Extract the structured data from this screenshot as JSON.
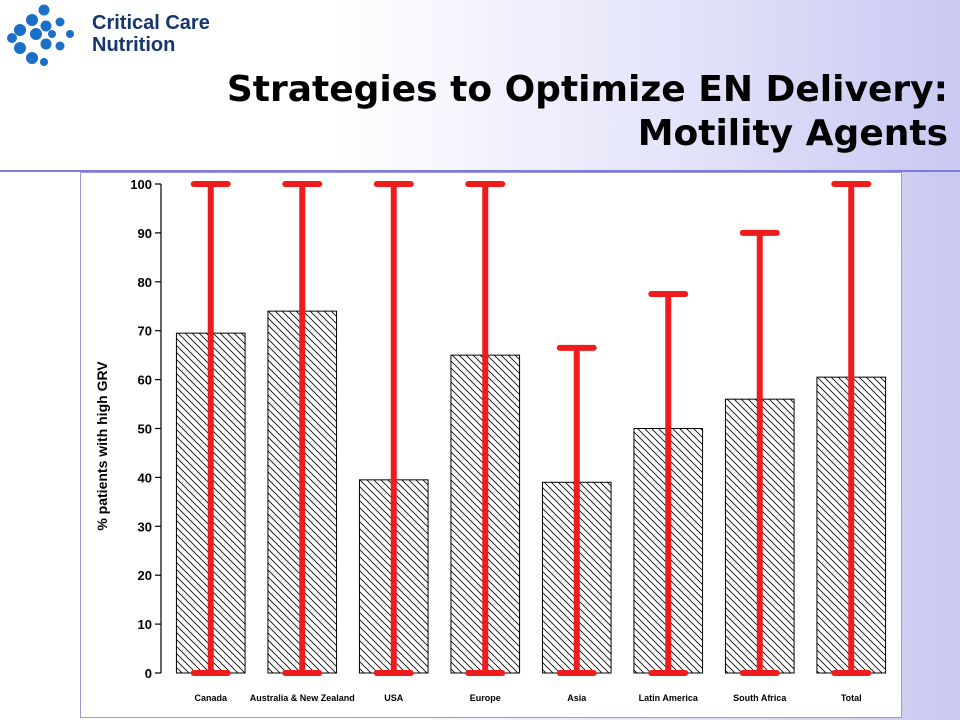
{
  "logo": {
    "line1": "Critical Care",
    "line2": "Nutrition",
    "icon": "ccn-dots-logo",
    "color": "#1b6fc8"
  },
  "slide": {
    "title_line1": "Strategies to Optimize EN Delivery:",
    "title_line2": "Motility Agents"
  },
  "colors": {
    "errorbar": "#ee1c1c",
    "rule": "#7b7be0"
  },
  "chart_data": {
    "type": "bar",
    "categories": [
      "Canada",
      "Australia & New Zealand",
      "USA",
      "Europe",
      "Asia",
      "Latin America",
      "South Africa",
      "Total"
    ],
    "values": [
      69.5,
      74,
      39.5,
      65,
      39,
      50,
      56,
      60.5
    ],
    "range_low": [
      0,
      0,
      0,
      0,
      0,
      0,
      0,
      0
    ],
    "range_high": [
      100,
      100,
      100,
      100,
      66.5,
      77.5,
      90,
      100
    ],
    "ylabel": "% patients with high GRV",
    "xlabel": "",
    "ylim": [
      0,
      100
    ],
    "yticks": [
      0,
      10,
      20,
      30,
      40,
      50,
      60,
      70,
      80,
      90,
      100
    ],
    "bar_fill": "hatched",
    "grid": false
  }
}
